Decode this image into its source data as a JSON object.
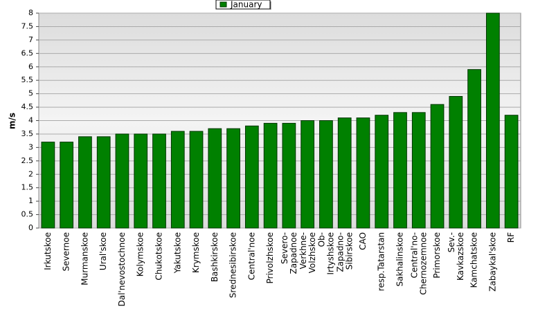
{
  "chart_data": {
    "type": "bar",
    "y_label": "m/s",
    "categories": [
      "Irkutskoe",
      "Severnoe",
      "Murmanskoe",
      "Ural'skoe",
      "Dal'nevostochnoe",
      "Kolymskoe",
      "Chukotskoe",
      "Yakutskoe",
      "Krymskoe",
      "Bashkirskoe",
      "Srednesibirskoe",
      "Central'noe",
      "Privolzhskoe",
      "Severo-Zapadnoe",
      "Verkhne-Volzhskoe",
      "Ob-Irtyshskoe",
      "Zapadno-Sibirskoe",
      "CAO",
      "resp.Tatarstan",
      "Sakhalinskoe",
      "Central'no-Chernozemnoe",
      "Primorskoe",
      "Sev.-Kavkazskoe",
      "Kamchatskoe",
      "Zabaykal'skoe",
      "RF"
    ],
    "series": [
      {
        "name": "January",
        "color": "#008000",
        "values": [
          3.2,
          3.2,
          3.4,
          3.4,
          3.5,
          3.5,
          3.5,
          3.6,
          3.6,
          3.7,
          3.7,
          3.8,
          3.9,
          3.9,
          4.0,
          4.0,
          4.1,
          4.1,
          4.2,
          4.3,
          4.3,
          4.6,
          4.9,
          5.9,
          8.0,
          4.2
        ]
      }
    ],
    "ylim": [
      0,
      8
    ],
    "yticks": [
      0,
      0.5,
      1,
      1.5,
      2,
      2.5,
      3,
      3.5,
      4,
      4.5,
      5,
      5.5,
      6,
      6.5,
      7,
      7.5,
      8
    ],
    "grid": true,
    "legend": "top"
  }
}
